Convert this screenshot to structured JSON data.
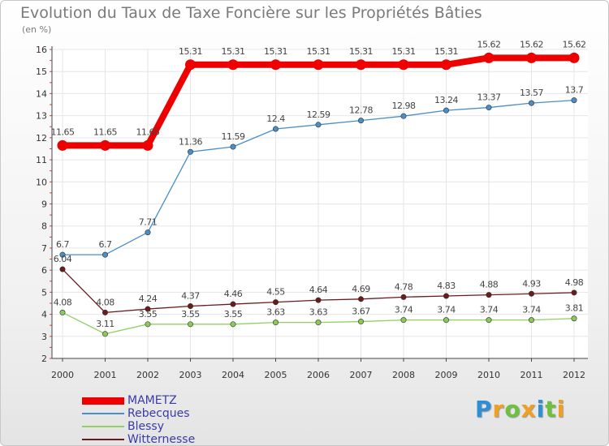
{
  "title": "Evolution du Taux de Taxe Foncière sur les Propriétés Bâties",
  "unit_label": "(en %)",
  "logo": {
    "letters": [
      "P",
      "r",
      "o",
      "x",
      "i",
      "t",
      "i"
    ],
    "colors": [
      "#2e8fd6",
      "#f0a020",
      "#6cc23c",
      "#f0a020",
      "#2e8fd6",
      "#6cc23c",
      "#f0a020"
    ]
  },
  "chart_data": {
    "type": "line",
    "title": "Evolution du Taux de Taxe Foncière sur les Propriétés Bâties",
    "ylabel": "(en %)",
    "xlabel": "",
    "x": [
      "2000",
      "2001",
      "2002",
      "2003",
      "2004",
      "2005",
      "2006",
      "2007",
      "2008",
      "2009",
      "2010",
      "2011",
      "2012"
    ],
    "ylim": [
      2,
      16
    ],
    "yticks": [
      2,
      3,
      4,
      5,
      6,
      7,
      8,
      9,
      10,
      11,
      12,
      13,
      14,
      15,
      16
    ],
    "legend_position": "bottom-left",
    "series": [
      {
        "name": "MAMETZ",
        "color": "#ee0000",
        "marker": "#ee0000",
        "emphasis": true,
        "values": [
          11.65,
          11.65,
          11.65,
          15.31,
          15.31,
          15.31,
          15.31,
          15.31,
          15.31,
          15.31,
          15.62,
          15.62,
          15.62
        ],
        "labels": [
          "11.65",
          "11.65",
          "11.65",
          "15.31",
          "15.31",
          "15.31",
          "15.31",
          "15.31",
          "15.31",
          "15.31",
          "15.62",
          "15.62",
          "15.62"
        ]
      },
      {
        "name": "Rebecques",
        "color": "#4a8ec8",
        "marker": "#4a8ec8",
        "emphasis": false,
        "values": [
          6.7,
          6.7,
          7.71,
          11.36,
          11.59,
          12.4,
          12.59,
          12.78,
          12.98,
          13.24,
          13.37,
          13.57,
          13.7
        ],
        "labels": [
          "6.7",
          "6.7",
          "7.71",
          "11.36",
          "11.59",
          "12.4",
          "12.59",
          "12.78",
          "12.98",
          "13.24",
          "13.37",
          "13.57",
          "13.7"
        ]
      },
      {
        "name": "Blessy",
        "color": "#90d060",
        "marker": "#8ac858",
        "emphasis": false,
        "values": [
          4.08,
          3.11,
          3.55,
          3.55,
          3.55,
          3.63,
          3.63,
          3.67,
          3.74,
          3.74,
          3.74,
          3.74,
          3.81
        ],
        "labels": [
          "4.08",
          "3.11",
          "3.55",
          "3.55",
          "3.55",
          "3.63",
          "3.63",
          "3.67",
          "3.74",
          "3.74",
          "3.74",
          "3.74",
          "3.81"
        ]
      },
      {
        "name": "Witternesse",
        "color": "#6a1c1c",
        "marker": "#6a1c1c",
        "emphasis": false,
        "values": [
          6.04,
          4.08,
          4.24,
          4.37,
          4.46,
          4.55,
          4.64,
          4.69,
          4.78,
          4.83,
          4.88,
          4.93,
          4.98
        ],
        "labels": [
          "6.04",
          "4.08",
          "4.24",
          "4.37",
          "4.46",
          "4.55",
          "4.64",
          "4.69",
          "4.78",
          "4.83",
          "4.88",
          "4.93",
          "4.98"
        ]
      }
    ]
  }
}
